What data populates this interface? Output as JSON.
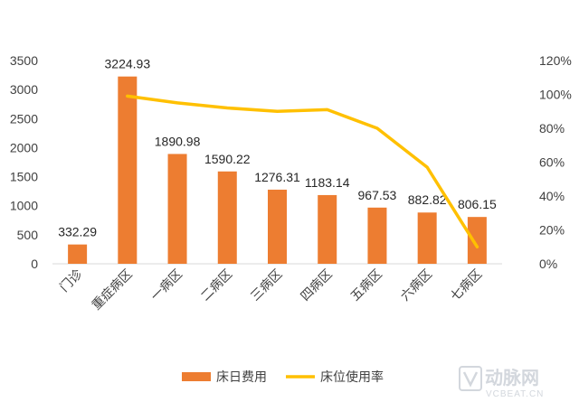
{
  "chart_data": {
    "type": "bar",
    "categories": [
      "门诊",
      "重症病区",
      "一病区",
      "二病区",
      "三病区",
      "四病区",
      "五病区",
      "六病区",
      "七病区"
    ],
    "series": [
      {
        "name": "床日费用",
        "type": "bar",
        "axis": "left",
        "color": "#ED7D31",
        "values": [
          332.29,
          3224.93,
          1890.98,
          1590.22,
          1276.31,
          1183.14,
          967.53,
          882.82,
          806.15
        ],
        "labels": [
          "332.29",
          "3224.93",
          "1890.98",
          "1590.22",
          "1276.31",
          "1183.14",
          "967.53",
          "882.82",
          "806.15"
        ]
      },
      {
        "name": "床位使用率",
        "type": "line",
        "axis": "right",
        "color": "#FFC000",
        "values": [
          null,
          99,
          95,
          92,
          90,
          91,
          80,
          57,
          10
        ]
      }
    ],
    "y_left": {
      "min": 0,
      "max": 3500,
      "ticks": [
        0,
        500,
        1000,
        1500,
        2000,
        2500,
        3000,
        3500
      ],
      "tick_labels": [
        "0",
        "500",
        "1000",
        "1500",
        "2000",
        "2500",
        "3000",
        "3500"
      ]
    },
    "y_right": {
      "min": 0,
      "max": 120,
      "ticks": [
        0,
        20,
        40,
        60,
        80,
        100,
        120
      ],
      "tick_labels": [
        "0%",
        "20%",
        "40%",
        "60%",
        "80%",
        "100%",
        "120%"
      ]
    },
    "grid": false,
    "legend_position": "bottom-center"
  },
  "watermark": {
    "text": "动脉网",
    "sub": "VCBEAT.CN"
  }
}
